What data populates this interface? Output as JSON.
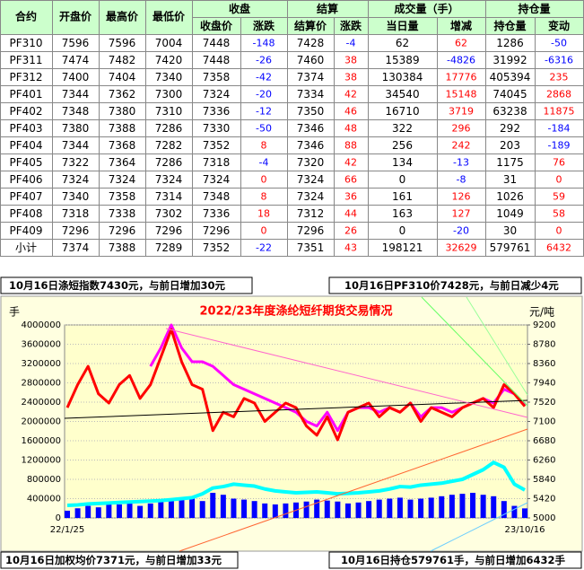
{
  "table": {
    "header_left": [
      "合约",
      "开盘价",
      "最高价",
      "最低价"
    ],
    "header_top": [
      "收盘",
      "结算",
      "成交量（手）",
      "持仓量"
    ],
    "header_sub": [
      "收盘价",
      "涨跌",
      "结算价",
      "涨跌",
      "当日量",
      "增减",
      "持仓量",
      "变动"
    ],
    "rows": [
      [
        "PF310",
        7596,
        7596,
        7004,
        7448,
        -148,
        7428,
        -4,
        62,
        62,
        1286,
        -50
      ],
      [
        "PF311",
        7474,
        7482,
        7420,
        7448,
        -26,
        7460,
        38,
        15389,
        -4826,
        31992,
        -6316
      ],
      [
        "PF312",
        7400,
        7404,
        7340,
        7358,
        -42,
        7374,
        38,
        130384,
        17776,
        405394,
        235
      ],
      [
        "PF401",
        7344,
        7362,
        7300,
        7324,
        -20,
        7334,
        42,
        34540,
        15148,
        74045,
        2868
      ],
      [
        "PF402",
        7348,
        7380,
        7310,
        7336,
        -12,
        7350,
        46,
        16710,
        3719,
        63238,
        11875
      ],
      [
        "PF403",
        7380,
        7388,
        7286,
        7330,
        -50,
        7346,
        48,
        322,
        296,
        292,
        -184
      ],
      [
        "PF404",
        7344,
        7368,
        7282,
        7352,
        8,
        7346,
        88,
        256,
        242,
        203,
        -189
      ],
      [
        "PF405",
        7322,
        7364,
        7286,
        7318,
        -4,
        7320,
        42,
        134,
        -13,
        1175,
        76
      ],
      [
        "PF406",
        7324,
        7324,
        7324,
        7324,
        0,
        7324,
        66,
        0,
        -8,
        31,
        0
      ],
      [
        "PF407",
        7340,
        7358,
        7314,
        7348,
        8,
        7324,
        36,
        161,
        126,
        1026,
        59
      ],
      [
        "PF408",
        7318,
        7338,
        7302,
        7336,
        18,
        7312,
        44,
        163,
        127,
        1049,
        58
      ],
      [
        "PF409",
        7296,
        7296,
        7296,
        7296,
        0,
        7296,
        26,
        0,
        -20,
        30,
        0
      ],
      [
        "小计",
        7374,
        7388,
        7289,
        7352,
        -22,
        7351,
        43,
        198121,
        32629,
        579761,
        6432
      ]
    ]
  },
  "notes": {
    "top_left": "10月16日涤短指数7430元，与前日增加30元",
    "top_right": "10月16日PF310价7428元，与前日减少4元",
    "bottom_left": "10月16日加权均价7371元，与前日增加33元",
    "bottom_right": "10月16日持仓579761手，与前日增加6432手"
  },
  "chart_data": {
    "type": "combo",
    "title": "2022/23年度涤纶短纤期货交易情况",
    "y_label": "手",
    "y2_label": "元/吨",
    "categories": [
      "22/1/25",
      null,
      null,
      null,
      null,
      null,
      null,
      null,
      null,
      null,
      null,
      null,
      null,
      null,
      null,
      null,
      null,
      null,
      null,
      null,
      null,
      null,
      null,
      null,
      null,
      null,
      null,
      null,
      null,
      null,
      null,
      null,
      null,
      null,
      null,
      null,
      null,
      null,
      null,
      null,
      null,
      null,
      null,
      null,
      "23/10/16"
    ],
    "ylim": [
      0,
      4000000
    ],
    "yticks": [
      0,
      400000,
      800000,
      1200000,
      1600000,
      2000000,
      2400000,
      2800000,
      3200000,
      3600000,
      4000000
    ],
    "y2lim": [
      5000,
      9200
    ],
    "y2ticks": [
      5000,
      5420,
      5840,
      6260,
      6680,
      7100,
      7520,
      7940,
      8360,
      8780,
      9200
    ],
    "grid": true,
    "series": [
      {
        "type": "bar",
        "color": "#0000ff",
        "values": [
          150000,
          200000,
          250000,
          220000,
          300000,
          280000,
          320000,
          250000,
          300000,
          350000,
          380000,
          420000,
          400000,
          350000,
          520000,
          480000,
          400000,
          380000,
          350000,
          300000,
          280000,
          300000,
          320000,
          340000,
          380000,
          360000,
          340000,
          300000,
          320000,
          350000,
          380000,
          400000,
          420000,
          380000,
          400000,
          420000,
          450000,
          480000,
          500000,
          520000,
          480000,
          450000,
          350000,
          250000,
          198121
        ]
      },
      {
        "type": "line",
        "color": "#00ffff",
        "values": [
          260000,
          270000,
          290000,
          300000,
          310000,
          320000,
          330000,
          340000,
          350000,
          360000,
          380000,
          400000,
          420000,
          500000,
          620000,
          650000,
          700000,
          680000,
          660000,
          600000,
          560000,
          540000,
          520000,
          530000,
          540000,
          520000,
          500000,
          510000,
          520000,
          540000,
          560000,
          600000,
          650000,
          640000,
          680000,
          700000,
          720000,
          760000,
          800000,
          900000,
          1000000,
          1150000,
          1050000,
          700000,
          579761
        ]
      },
      {
        "type": "line",
        "axis": "y2",
        "color": "#ff00ff",
        "values": [
          null,
          null,
          null,
          null,
          null,
          null,
          null,
          null,
          8300,
          8700,
          9200,
          8700,
          8400,
          8400,
          8300,
          8100,
          7900,
          7800,
          7700,
          7600,
          7500,
          7400,
          7300,
          7100,
          7000,
          7300,
          6900,
          7300,
          7400,
          7400,
          7300,
          7400,
          7300,
          7500,
          7200,
          7400,
          7400,
          7300,
          7400,
          7500,
          7600,
          7500,
          7800,
          7700,
          7450
        ]
      },
      {
        "type": "line",
        "axis": "y2",
        "color": "#ff0000",
        "values": [
          7400,
          7900,
          8300,
          7700,
          7500,
          7900,
          8100,
          7600,
          7900,
          8500,
          9100,
          8400,
          7900,
          7800,
          6900,
          7300,
          7200,
          7600,
          7500,
          7100,
          7300,
          7500,
          7400,
          7000,
          6800,
          7200,
          6700,
          7300,
          7400,
          7500,
          7200,
          7400,
          7300,
          7500,
          7100,
          7400,
          7300,
          7200,
          7400,
          7500,
          7600,
          7400,
          7900,
          7700,
          7428
        ]
      }
    ]
  }
}
